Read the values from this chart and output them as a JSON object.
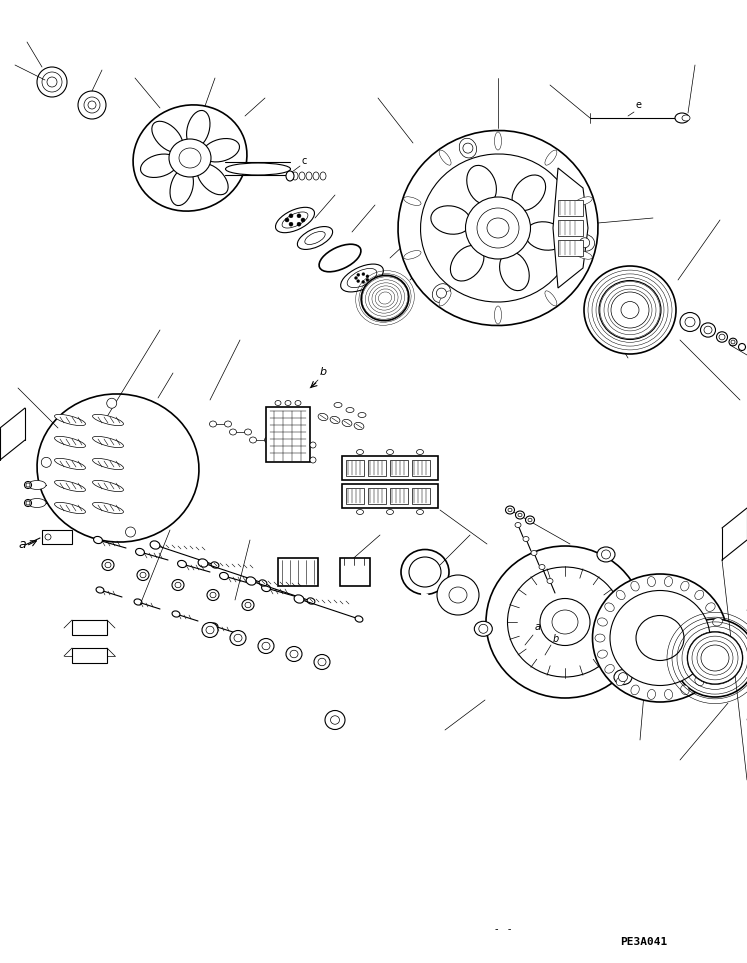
{
  "background_color": "#ffffff",
  "line_color": "#000000",
  "page_id": "PE3A041",
  "label_a": "a",
  "label_b": "b",
  "label_c": "c",
  "label_e": "e",
  "fig_width": 7.47,
  "fig_height": 9.63,
  "dpi": 100
}
